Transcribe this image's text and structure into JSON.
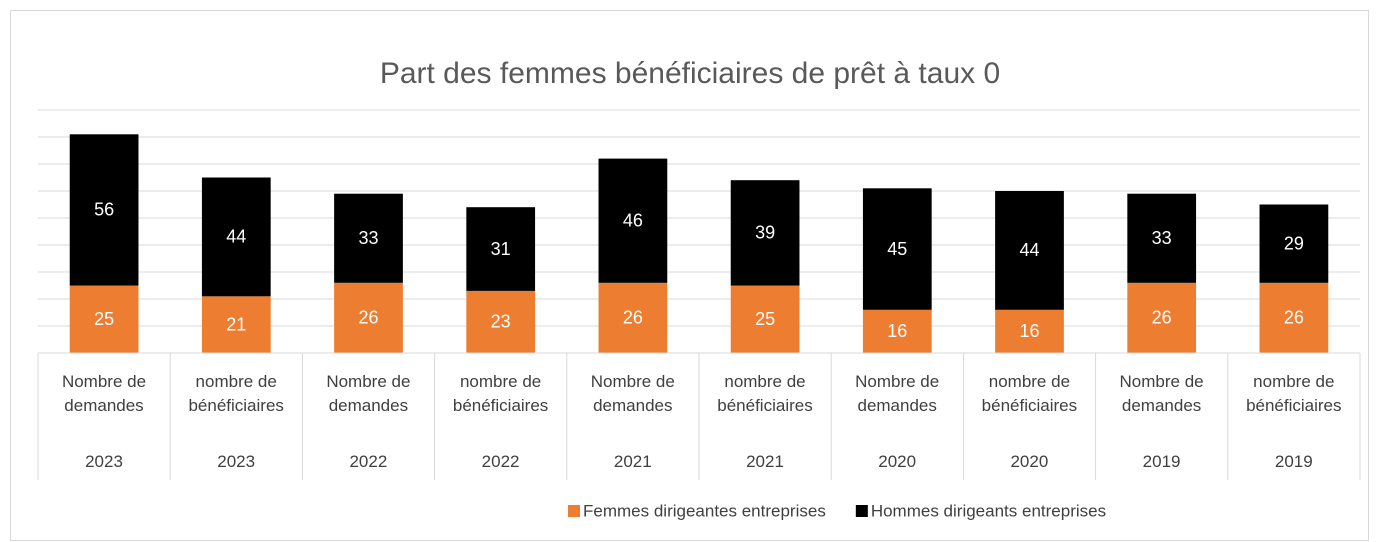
{
  "chart_data": {
    "type": "stacked_bar",
    "title": "Part des femmes bénéficiaires de prêt à taux 0",
    "categories": [
      "Nombre de demandes",
      "nombre de bénéficiaires",
      "Nombre de demandes",
      "nombre de bénéficiaires",
      "Nombre de demandes",
      "nombre de bénéficiaires",
      "Nombre de demandes",
      "nombre de bénéficiaires",
      "Nombre de demandes",
      "nombre de bénéficiaires"
    ],
    "category_groups": [
      "2023",
      "2023",
      "2022",
      "2022",
      "2021",
      "2021",
      "2020",
      "2020",
      "2019",
      "2019"
    ],
    "series": [
      {
        "name": "Femmes dirigeantes entreprises",
        "color": "#ed7d31",
        "values": [
          25,
          21,
          26,
          23,
          26,
          25,
          16,
          16,
          26,
          26
        ]
      },
      {
        "name": "Hommes dirigeants entreprises",
        "color": "#000000",
        "values": [
          56,
          44,
          33,
          31,
          46,
          39,
          45,
          44,
          33,
          29
        ]
      }
    ],
    "ylim": [
      0,
      90
    ],
    "yticks": [
      0,
      10,
      20,
      30,
      40,
      50,
      60,
      70,
      80,
      90
    ],
    "grid": true,
    "legend": "bottom"
  }
}
